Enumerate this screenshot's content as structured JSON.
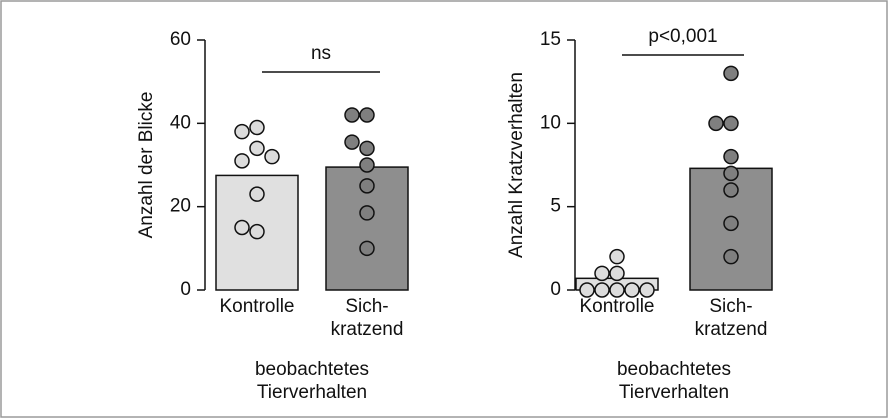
{
  "chart_data": [
    {
      "type": "bar",
      "ylabel": "Anzahl der Blicke",
      "annotation": "ns",
      "categories": [
        "Kontrolle",
        "Sich-\nkratzend"
      ],
      "xlabel": "beobachtetes\nTierverhalten",
      "values": [
        27.5,
        29.5
      ],
      "colors": [
        "#e0e0e0",
        "#8e8e8e"
      ],
      "point_colors": [
        "#dcdcdc",
        "#7f7f7f"
      ],
      "points": [
        [
          39,
          38,
          34,
          31,
          32,
          23,
          14,
          15
        ],
        [
          42,
          42,
          34,
          35.5,
          30,
          25,
          18.5,
          10
        ]
      ],
      "ylim": [
        0,
        60
      ],
      "yticks": [
        0,
        20,
        40,
        60
      ]
    },
    {
      "type": "bar",
      "ylabel": "Anzahl Kratzverhalten",
      "annotation": "p<0,001",
      "categories": [
        "Kontrolle",
        "Sich-\nkratzend"
      ],
      "xlabel": "beobachtetes\nTierverhalten",
      "values": [
        0.7,
        7.3
      ],
      "colors": [
        "#e0e0e0",
        "#8e8e8e"
      ],
      "point_colors": [
        "#dcdcdc",
        "#7f7f7f"
      ],
      "points": [
        [
          2,
          1,
          1,
          0,
          0,
          0,
          0,
          0
        ],
        [
          13,
          10,
          10,
          8,
          7,
          6,
          4,
          2
        ]
      ],
      "ylim": [
        0,
        15
      ],
      "yticks": [
        0,
        5,
        10,
        15
      ]
    }
  ]
}
